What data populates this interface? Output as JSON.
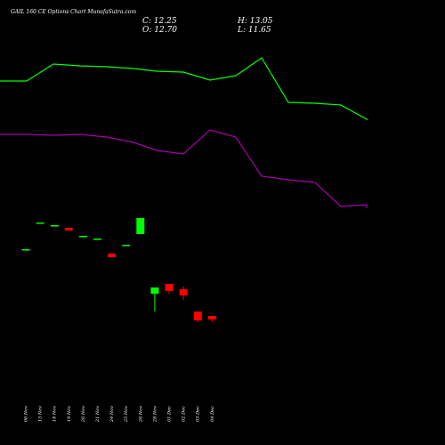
{
  "title": "GAIL 160 CE Options Chart MunafaSutra.com",
  "ohlc": {
    "close": "C: 12.25",
    "open": "O: 12.70",
    "high": "H: 13.05",
    "low": "L: 11.65"
  },
  "colors": {
    "background": "#000000",
    "upper_line": "#00ff00",
    "lower_line": "#aa00aa",
    "up_candle": "#00ff00",
    "down_candle": "#ff0000",
    "text": "#ffffff"
  },
  "chart_data": {
    "type": "candlestick",
    "categories": [
      "06 Nov",
      "13 Nov",
      "18 Nov",
      "19 Nov",
      "20 Nov",
      "21 Nov",
      "24 Nov",
      "25 Nov",
      "26 Nov",
      "28 Nov",
      "01 Dec",
      "02 Dec",
      "03 Dec",
      "04 Dec"
    ],
    "candles": [
      {
        "open": 220,
        "close": 220,
        "high": 220,
        "low": 220
      },
      {
        "open": 250,
        "close": 250,
        "high": 250,
        "low": 250
      },
      {
        "open": 247,
        "close": 247,
        "high": 247,
        "low": 247
      },
      {
        "open": 244,
        "close": 241,
        "high": 244,
        "low": 241
      },
      {
        "open": 235,
        "close": 235,
        "high": 235,
        "low": 235
      },
      {
        "open": 232,
        "close": 232,
        "high": 232,
        "low": 232
      },
      {
        "open": 215,
        "close": 211,
        "high": 215,
        "low": 211
      },
      {
        "open": 225,
        "close": 225,
        "high": 225,
        "low": 225
      },
      {
        "open": 237,
        "close": 255,
        "high": 255,
        "low": 237
      },
      {
        "open": 170,
        "close": 177,
        "high": 177,
        "low": 150
      },
      {
        "open": 181,
        "close": 173,
        "high": 181,
        "low": 170
      },
      {
        "open": 175,
        "close": 168,
        "high": 178,
        "low": 163
      },
      {
        "open": 150,
        "close": 140,
        "high": 150,
        "low": 138
      },
      {
        "open": 145,
        "close": 141,
        "high": 145,
        "low": 138
      }
    ],
    "upper_line": [
      409,
      409,
      428,
      426,
      425,
      423,
      420,
      419,
      410,
      415,
      435,
      385,
      384,
      382,
      366,
      367
    ],
    "lower_line": [
      349,
      349,
      348,
      349,
      346,
      340,
      331,
      327,
      354,
      346,
      302,
      298,
      295,
      268,
      270,
      266
    ],
    "ylim": [
      0,
      500
    ],
    "grid": false
  }
}
